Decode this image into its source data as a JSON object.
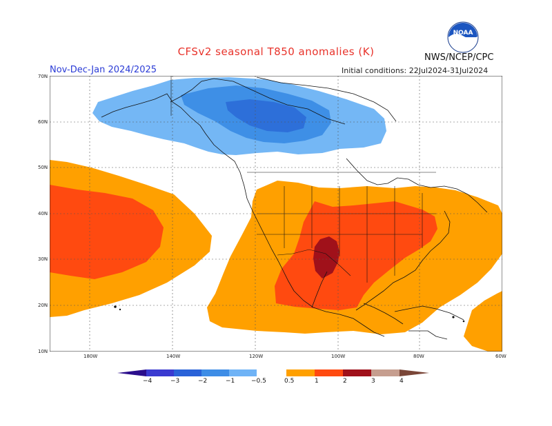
{
  "title": "CFSv2 seasonal T850 anomalies (K)",
  "agency": "NWS/NCEP/CPC",
  "logo_text": "NOAA",
  "season": "Nov-Dec-Jan 2024/2025",
  "initial_conditions": "Initial conditions: 22Jul2024-31Jul2024",
  "lat_labels": [
    "70N",
    "60N",
    "50N",
    "40N",
    "30N",
    "20N",
    "10N"
  ],
  "lon_labels": [
    "180W",
    "140W",
    "120W",
    "100W",
    "80W",
    "60W"
  ],
  "colorbar": {
    "labels": [
      "−4",
      "−3",
      "−2",
      "−1",
      "−0.5",
      "0.5",
      "1",
      "2",
      "3",
      "4"
    ],
    "colors": [
      "#2b0e8c",
      "#3a3ad0",
      "#2a62d8",
      "#3e8de6",
      "#6fb3f6",
      "#ffffff",
      "#ffa000",
      "#ff4a10",
      "#cc1a1a",
      "#a0111a",
      "#c69e8f",
      "#7a4638"
    ]
  },
  "colors": {
    "light_blue": "#74b7f5",
    "mid_blue": "#3e8fe6",
    "dark_blue": "#2d6fd9",
    "orange": "#ffa000",
    "red_orange": "#ff4a10",
    "dark_red": "#a0111a"
  }
}
